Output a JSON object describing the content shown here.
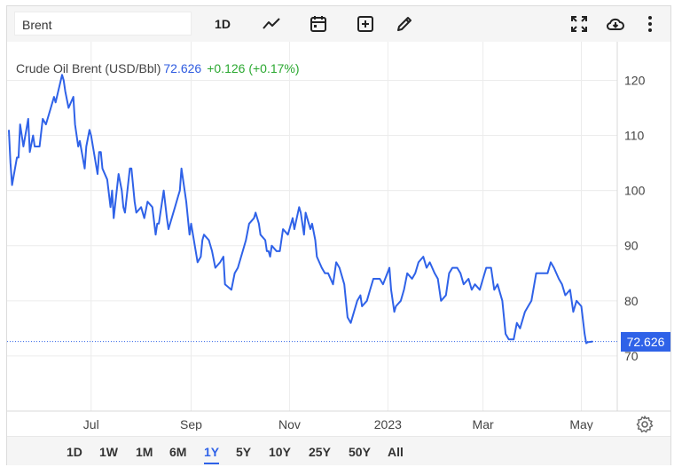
{
  "toolbar": {
    "search_value": "Brent",
    "interval_label": "1D",
    "icons": [
      "chart-type-line-icon",
      "calendar-icon",
      "add-indicator-icon",
      "draw-pencil-icon",
      "fullscreen-icon",
      "download-cloud-icon",
      "more-vertical-icon"
    ]
  },
  "legend": {
    "name": "Crude Oil Brent (USD/Bbl)",
    "price": "72.626",
    "change": "+0.126 (+0.17%)"
  },
  "price_tag": "72.626",
  "colors": {
    "line": "#2f62e8",
    "change_up": "#2aa830",
    "accent": "#2f62e8"
  },
  "ranges": [
    {
      "label": "1D",
      "active": false
    },
    {
      "label": "1W",
      "active": false
    },
    {
      "label": "1M",
      "active": false
    },
    {
      "label": "6M",
      "active": false
    },
    {
      "label": "1Y",
      "active": true
    },
    {
      "label": "5Y",
      "active": false
    },
    {
      "label": "10Y",
      "active": false
    },
    {
      "label": "25Y",
      "active": false
    },
    {
      "label": "50Y",
      "active": false
    },
    {
      "label": "All",
      "active": false
    }
  ],
  "chart_data": {
    "type": "line",
    "title": "",
    "xlabel": "",
    "ylabel": "",
    "ylim": [
      60,
      127
    ],
    "y_ticks": [
      70,
      80,
      90,
      100,
      110,
      120
    ],
    "x_ticks": [
      {
        "label": "Jul",
        "date": "2022-07-01"
      },
      {
        "label": "Sep",
        "date": "2022-09-01"
      },
      {
        "label": "Nov",
        "date": "2022-11-01"
      },
      {
        "label": "2023",
        "date": "2023-01-01"
      },
      {
        "label": "Mar",
        "date": "2023-03-01"
      },
      {
        "label": "May",
        "date": "2023-05-01"
      }
    ],
    "x_range": [
      "2022-05-11",
      "2023-05-15"
    ],
    "grid": true,
    "series": [
      {
        "points": [
          [
            "2022-05-11",
            111
          ],
          [
            "2022-05-12",
            105
          ],
          [
            "2022-05-13",
            101
          ],
          [
            "2022-05-16",
            106
          ],
          [
            "2022-05-17",
            106
          ],
          [
            "2022-05-18",
            112
          ],
          [
            "2022-05-20",
            108
          ],
          [
            "2022-05-23",
            113
          ],
          [
            "2022-05-24",
            107
          ],
          [
            "2022-05-26",
            110
          ],
          [
            "2022-05-27",
            108
          ],
          [
            "2022-05-30",
            108
          ],
          [
            "2022-06-01",
            113
          ],
          [
            "2022-06-03",
            112
          ],
          [
            "2022-06-06",
            115
          ],
          [
            "2022-06-08",
            117
          ],
          [
            "2022-06-09",
            116
          ],
          [
            "2022-06-13",
            121
          ],
          [
            "2022-06-14",
            120
          ],
          [
            "2022-06-15",
            118
          ],
          [
            "2022-06-17",
            115
          ],
          [
            "2022-06-20",
            117
          ],
          [
            "2022-06-21",
            112
          ],
          [
            "2022-06-23",
            108
          ],
          [
            "2022-06-24",
            109
          ],
          [
            "2022-06-27",
            104
          ],
          [
            "2022-06-28",
            108
          ],
          [
            "2022-06-30",
            111
          ],
          [
            "2022-07-01",
            110
          ],
          [
            "2022-07-05",
            103
          ],
          [
            "2022-07-06",
            107
          ],
          [
            "2022-07-07",
            107
          ],
          [
            "2022-07-08",
            104
          ],
          [
            "2022-07-11",
            102
          ],
          [
            "2022-07-13",
            97
          ],
          [
            "2022-07-14",
            100
          ],
          [
            "2022-07-15",
            95
          ],
          [
            "2022-07-18",
            103
          ],
          [
            "2022-07-20",
            100
          ],
          [
            "2022-07-21",
            97
          ],
          [
            "2022-07-22",
            96
          ],
          [
            "2022-07-25",
            104
          ],
          [
            "2022-07-26",
            104
          ],
          [
            "2022-07-28",
            98
          ],
          [
            "2022-07-29",
            96
          ],
          [
            "2022-08-01",
            97
          ],
          [
            "2022-08-03",
            95
          ],
          [
            "2022-08-05",
            98
          ],
          [
            "2022-08-08",
            97
          ],
          [
            "2022-08-10",
            92
          ],
          [
            "2022-08-11",
            94
          ],
          [
            "2022-08-12",
            94
          ],
          [
            "2022-08-15",
            100
          ],
          [
            "2022-08-17",
            95
          ],
          [
            "2022-08-18",
            93
          ],
          [
            "2022-08-19",
            94
          ],
          [
            "2022-08-22",
            97
          ],
          [
            "2022-08-24",
            99
          ],
          [
            "2022-08-25",
            100
          ],
          [
            "2022-08-26",
            104
          ],
          [
            "2022-08-29",
            98
          ],
          [
            "2022-08-31",
            92
          ],
          [
            "2022-09-01",
            94
          ],
          [
            "2022-09-05",
            87
          ],
          [
            "2022-09-07",
            88
          ],
          [
            "2022-09-08",
            91
          ],
          [
            "2022-09-09",
            92
          ],
          [
            "2022-09-12",
            91
          ],
          [
            "2022-09-14",
            89
          ],
          [
            "2022-09-16",
            86
          ],
          [
            "2022-09-19",
            87
          ],
          [
            "2022-09-21",
            88
          ],
          [
            "2022-09-22",
            83
          ],
          [
            "2022-09-26",
            82
          ],
          [
            "2022-09-28",
            85
          ],
          [
            "2022-09-30",
            86
          ],
          [
            "2022-10-03",
            89
          ],
          [
            "2022-10-05",
            91
          ],
          [
            "2022-10-07",
            94
          ],
          [
            "2022-10-10",
            95
          ],
          [
            "2022-10-11",
            96
          ],
          [
            "2022-10-13",
            94
          ],
          [
            "2022-10-14",
            92
          ],
          [
            "2022-10-17",
            91
          ],
          [
            "2022-10-18",
            89
          ],
          [
            "2022-10-19",
            89
          ],
          [
            "2022-10-20",
            88
          ],
          [
            "2022-10-21",
            90
          ],
          [
            "2022-10-24",
            89
          ],
          [
            "2022-10-26",
            89
          ],
          [
            "2022-10-28",
            93
          ],
          [
            "2022-10-31",
            92
          ],
          [
            "2022-11-01",
            93
          ],
          [
            "2022-11-03",
            95
          ],
          [
            "2022-11-04",
            93
          ],
          [
            "2022-11-07",
            97
          ],
          [
            "2022-11-08",
            96
          ],
          [
            "2022-11-10",
            92
          ],
          [
            "2022-11-11",
            96
          ],
          [
            "2022-11-14",
            93
          ],
          [
            "2022-11-15",
            94
          ],
          [
            "2022-11-17",
            91
          ],
          [
            "2022-11-18",
            88
          ],
          [
            "2022-11-21",
            86
          ],
          [
            "2022-11-23",
            85
          ],
          [
            "2022-11-25",
            85
          ],
          [
            "2022-11-28",
            83
          ],
          [
            "2022-11-30",
            87
          ],
          [
            "2022-12-02",
            86
          ],
          [
            "2022-12-05",
            83
          ],
          [
            "2022-12-07",
            77
          ],
          [
            "2022-12-09",
            76
          ],
          [
            "2022-12-13",
            80
          ],
          [
            "2022-12-15",
            81
          ],
          [
            "2022-12-16",
            79
          ],
          [
            "2022-12-19",
            80
          ],
          [
            "2022-12-21",
            82
          ],
          [
            "2022-12-23",
            84
          ],
          [
            "2022-12-27",
            84
          ],
          [
            "2022-12-29",
            83
          ],
          [
            "2023-01-02",
            86
          ],
          [
            "2023-01-03",
            82
          ],
          [
            "2023-01-05",
            78
          ],
          [
            "2023-01-06",
            79
          ],
          [
            "2023-01-09",
            80
          ],
          [
            "2023-01-11",
            82
          ],
          [
            "2023-01-13",
            85
          ],
          [
            "2023-01-16",
            84
          ],
          [
            "2023-01-18",
            85
          ],
          [
            "2023-01-20",
            87
          ],
          [
            "2023-01-23",
            88
          ],
          [
            "2023-01-25",
            86
          ],
          [
            "2023-01-27",
            87
          ],
          [
            "2023-01-30",
            85
          ],
          [
            "2023-02-01",
            84
          ],
          [
            "2023-02-03",
            80
          ],
          [
            "2023-02-06",
            81
          ],
          [
            "2023-02-08",
            85
          ],
          [
            "2023-02-10",
            86
          ],
          [
            "2023-02-13",
            86
          ],
          [
            "2023-02-15",
            85
          ],
          [
            "2023-02-17",
            83
          ],
          [
            "2023-02-20",
            84
          ],
          [
            "2023-02-22",
            82
          ],
          [
            "2023-02-24",
            83
          ],
          [
            "2023-02-27",
            82
          ],
          [
            "2023-03-01",
            84
          ],
          [
            "2023-03-03",
            86
          ],
          [
            "2023-03-06",
            86
          ],
          [
            "2023-03-08",
            82
          ],
          [
            "2023-03-10",
            83
          ],
          [
            "2023-03-13",
            80
          ],
          [
            "2023-03-15",
            74
          ],
          [
            "2023-03-17",
            73
          ],
          [
            "2023-03-20",
            73
          ],
          [
            "2023-03-22",
            76
          ],
          [
            "2023-03-24",
            75
          ],
          [
            "2023-03-27",
            78
          ],
          [
            "2023-03-29",
            79
          ],
          [
            "2023-03-31",
            80
          ],
          [
            "2023-04-03",
            85
          ],
          [
            "2023-04-05",
            85
          ],
          [
            "2023-04-07",
            85
          ],
          [
            "2023-04-10",
            85
          ],
          [
            "2023-04-12",
            87
          ],
          [
            "2023-04-14",
            86
          ],
          [
            "2023-04-17",
            84
          ],
          [
            "2023-04-19",
            83
          ],
          [
            "2023-04-21",
            81
          ],
          [
            "2023-04-24",
            82
          ],
          [
            "2023-04-26",
            78
          ],
          [
            "2023-04-28",
            80
          ],
          [
            "2023-05-01",
            79
          ],
          [
            "2023-05-03",
            74
          ],
          [
            "2023-05-04",
            72.3
          ],
          [
            "2023-05-05",
            72.5
          ],
          [
            "2023-05-08",
            72.626
          ]
        ]
      }
    ]
  }
}
